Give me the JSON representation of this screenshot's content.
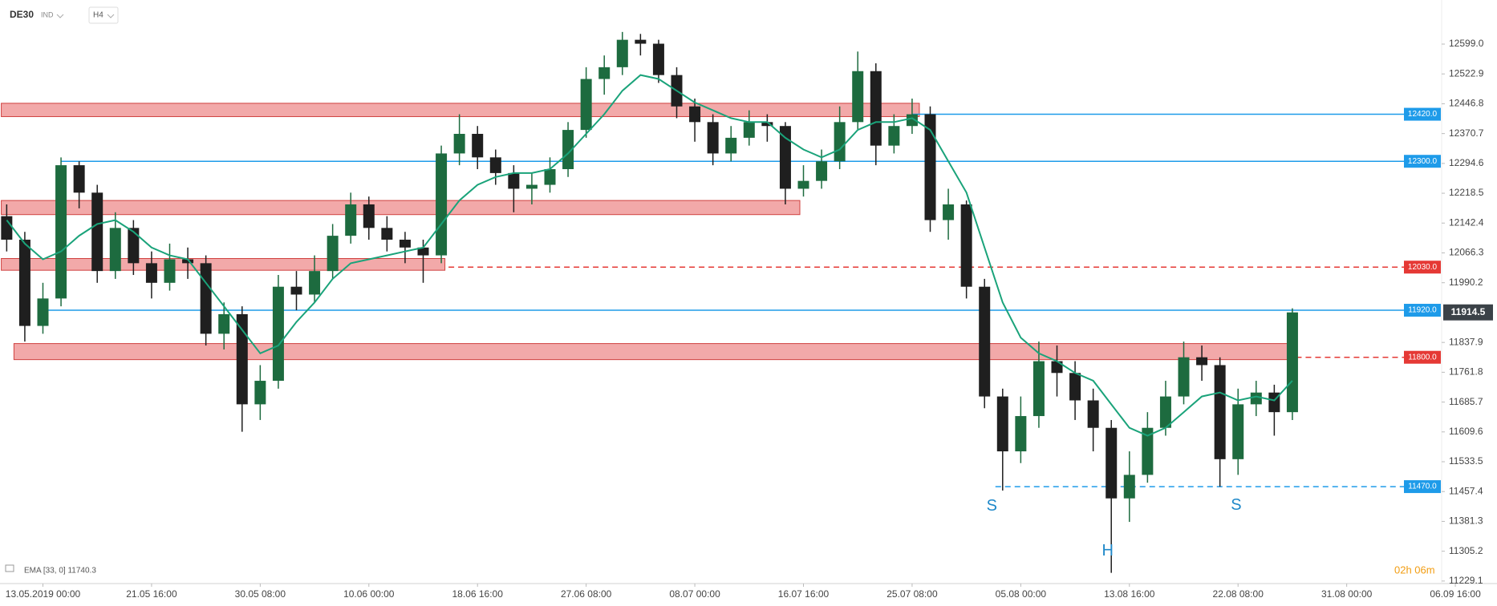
{
  "chart_data": {
    "type": "candlestick",
    "symbol": "DE30",
    "market": "IND",
    "interval": "H4",
    "indicator_label": "EMA [33, 0] 11740.3",
    "countdown": "02h 06m",
    "last_price": 11914.5,
    "up_color": "#1d6b3f",
    "down_color": "#1f1f1f",
    "ema_color": "#1aa37a",
    "open": [
      12160,
      12100,
      11880,
      11950,
      12290,
      12220,
      12020,
      12130,
      12040,
      11990,
      12050,
      12040,
      11860,
      11910,
      11680,
      11740,
      11980,
      11960,
      12020,
      12110,
      12190,
      12130,
      12100,
      12080,
      12060,
      12320,
      12370,
      12310,
      12270,
      12230,
      12240,
      12280,
      12380,
      12510,
      12540,
      12610,
      12600,
      12520,
      12440,
      12400,
      12320,
      12360,
      12400,
      12390,
      12230,
      12250,
      12300,
      12400,
      12530,
      12340,
      12390,
      12420,
      12150,
      12190,
      11980,
      11700,
      11560,
      11650,
      11790,
      11760,
      11690,
      11620,
      11440,
      11500,
      11620,
      11700,
      11800,
      11780,
      11540,
      11680,
      11710,
      11660
    ],
    "high": [
      12190,
      12120,
      11990,
      12310,
      12300,
      12240,
      12170,
      12150,
      12070,
      12090,
      12080,
      12060,
      11940,
      11930,
      11780,
      12010,
      12020,
      12060,
      12140,
      12220,
      12210,
      12160,
      12120,
      12100,
      12340,
      12420,
      12390,
      12330,
      12290,
      12270,
      12310,
      12400,
      12540,
      12570,
      12630,
      12625,
      12610,
      12540,
      12460,
      12420,
      12390,
      12430,
      12420,
      12400,
      12290,
      12330,
      12440,
      12580,
      12550,
      12420,
      12460,
      12440,
      12230,
      12200,
      12000,
      11720,
      11700,
      11840,
      11830,
      11790,
      11720,
      11640,
      11560,
      11660,
      11740,
      11840,
      11830,
      11800,
      11720,
      11740,
      11730,
      11925
    ],
    "low": [
      12070,
      11840,
      11860,
      11930,
      12180,
      11990,
      12000,
      12010,
      11950,
      11970,
      12000,
      11830,
      11820,
      11610,
      11640,
      11720,
      11920,
      11940,
      12000,
      12090,
      12100,
      12070,
      12040,
      11990,
      12040,
      12290,
      12280,
      12240,
      12170,
      12190,
      12220,
      12260,
      12360,
      12470,
      12520,
      12570,
      12500,
      12410,
      12350,
      12290,
      12300,
      12340,
      12350,
      12190,
      12210,
      12230,
      12280,
      12380,
      12290,
      12320,
      12370,
      12120,
      12100,
      11950,
      11670,
      11460,
      11530,
      11620,
      11700,
      11640,
      11560,
      11250,
      11380,
      11480,
      11600,
      11680,
      11740,
      11470,
      11500,
      11650,
      11600,
      11640
    ],
    "close": [
      12100,
      11880,
      11950,
      12290,
      12220,
      12020,
      12130,
      12040,
      11990,
      12050,
      12040,
      11860,
      11910,
      11680,
      11740,
      11980,
      11960,
      12020,
      12110,
      12190,
      12130,
      12100,
      12080,
      12060,
      12320,
      12370,
      12310,
      12270,
      12230,
      12240,
      12280,
      12380,
      12510,
      12540,
      12610,
      12600,
      12520,
      12440,
      12400,
      12320,
      12360,
      12400,
      12390,
      12230,
      12250,
      12300,
      12400,
      12530,
      12340,
      12390,
      12420,
      12150,
      12190,
      11980,
      11700,
      11560,
      11650,
      11790,
      11760,
      11690,
      11620,
      11440,
      11500,
      11620,
      11700,
      11800,
      11780,
      11540,
      11680,
      11710,
      11660,
      11914.5
    ],
    "ema": [
      12150,
      12090,
      12050,
      12070,
      12110,
      12140,
      12150,
      12120,
      12080,
      12060,
      12050,
      11990,
      11930,
      11870,
      11810,
      11830,
      11890,
      11940,
      12000,
      12040,
      12050,
      12060,
      12070,
      12080,
      12140,
      12200,
      12240,
      12260,
      12270,
      12270,
      12280,
      12320,
      12370,
      12420,
      12480,
      12520,
      12510,
      12480,
      12450,
      12430,
      12410,
      12400,
      12400,
      12360,
      12330,
      12310,
      12330,
      12380,
      12400,
      12400,
      12410,
      12380,
      12300,
      12220,
      12080,
      11940,
      11850,
      11810,
      11790,
      11760,
      11740,
      11680,
      11620,
      11600,
      11620,
      11660,
      11700,
      11710,
      11690,
      11700,
      11690,
      11740.3
    ],
    "zones": [
      {
        "from": 12414,
        "to": 12448,
        "x_start": -0.3,
        "x_end": 50.4
      },
      {
        "from": 12164,
        "to": 12200,
        "x_start": -0.3,
        "x_end": 43.8
      },
      {
        "from": 12022,
        "to": 12052,
        "x_start": -0.3,
        "x_end": 24.2
      },
      {
        "from": 11794,
        "to": 11835,
        "x_start": 0.4,
        "x_end": 71.2
      }
    ],
    "levels": [
      {
        "value": 12420,
        "label": "12420.0",
        "color": "#1e9be9",
        "style": "solid",
        "start": 50
      },
      {
        "value": 12300,
        "label": "12300.0",
        "color": "#1e9be9",
        "style": "solid",
        "start": 3
      },
      {
        "value": 12030,
        "label": "12030.0",
        "color": "#e53935",
        "style": "dashed",
        "start": 24.4
      },
      {
        "value": 11920,
        "label": "11920.0",
        "color": "#1e9be9",
        "style": "solid",
        "start": 2
      },
      {
        "value": 11800,
        "label": "11800.0",
        "color": "#e53935",
        "style": "dashed",
        "start": 71.2
      },
      {
        "value": 11470,
        "label": "11470.0",
        "color": "#1e9be9",
        "style": "dashed",
        "start": 54.6
      }
    ],
    "annotations": [
      {
        "text": "S",
        "x": 54.4,
        "y": 11420
      },
      {
        "text": "H",
        "x": 60.8,
        "y": 11305
      },
      {
        "text": "S",
        "x": 67.9,
        "y": 11422
      }
    ],
    "xlim": [
      -0.37,
      82.3
    ],
    "ylim": [
      11222.7,
      12711.5
    ],
    "yticks": [
      {
        "value": 12599,
        "label": "12599.0"
      },
      12522.9,
      12446.8,
      12370.7,
      12294.6,
      12218.5,
      12142.4,
      12066.3,
      11990.2,
      11837.9,
      11761.8,
      11685.7,
      11609.6,
      11533.5,
      11457.4,
      11381.3,
      11305.2,
      11229.1
    ],
    "xticks": [
      {
        "value": 2,
        "label": "13.05.2019  00:00"
      },
      {
        "value": 8,
        "label": "21.05  16:00"
      },
      {
        "value": 14,
        "label": "30.05  08:00"
      },
      {
        "value": 20,
        "label": "10.06  00:00"
      },
      {
        "value": 26,
        "label": "18.06  16:00"
      },
      {
        "value": 32,
        "label": "27.06  08:00"
      },
      {
        "value": 38,
        "label": "08.07  00:00"
      },
      {
        "value": 44,
        "label": "16.07  16:00"
      },
      {
        "value": 50,
        "label": "25.07  08:00"
      },
      {
        "value": 56,
        "label": "05.08  00:00"
      },
      {
        "value": 62,
        "label": "13.08  16:00"
      },
      {
        "value": 68,
        "label": "22.08  08:00"
      },
      {
        "value": 74,
        "label": "31.08  00:00"
      },
      {
        "value": 80,
        "label": "06.09  16:00"
      }
    ]
  }
}
